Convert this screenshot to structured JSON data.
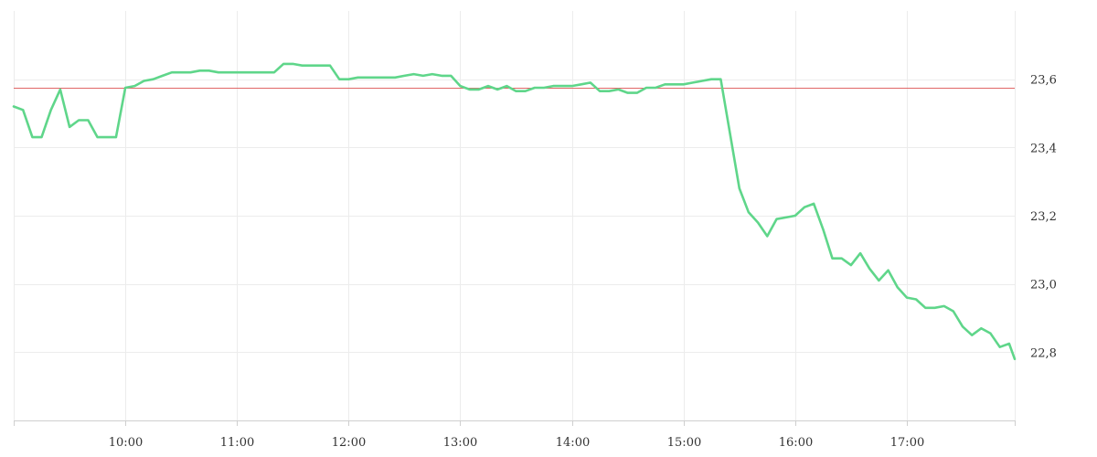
{
  "chart_data": {
    "type": "line",
    "title": "",
    "xlabel": "",
    "ylabel": "",
    "x_ticks": [
      "10:00",
      "11:00",
      "12:00",
      "13:00",
      "14:00",
      "15:00",
      "16:00",
      "17:00"
    ],
    "y_ticks": [
      "22,8",
      "23,0",
      "23,2",
      "23,4",
      "23,6"
    ],
    "y_tick_values": [
      22.8,
      23.0,
      23.2,
      23.4,
      23.6
    ],
    "x_range": [
      "09:00",
      "17:58"
    ],
    "ylim": [
      22.6,
      23.8
    ],
    "grid": true,
    "reference_line": {
      "value": 23.575,
      "color": "#e06666"
    },
    "series": [
      {
        "color": "#5fd68a",
        "points": [
          [
            "09:00",
            23.52
          ],
          [
            "09:05",
            23.51
          ],
          [
            "09:10",
            23.43
          ],
          [
            "09:15",
            23.43
          ],
          [
            "09:20",
            23.51
          ],
          [
            "09:25",
            23.57
          ],
          [
            "09:30",
            23.46
          ],
          [
            "09:35",
            23.48
          ],
          [
            "09:40",
            23.48
          ],
          [
            "09:45",
            23.43
          ],
          [
            "09:50",
            23.43
          ],
          [
            "09:55",
            23.43
          ],
          [
            "10:00",
            23.575
          ],
          [
            "10:05",
            23.58
          ],
          [
            "10:10",
            23.595
          ],
          [
            "10:15",
            23.6
          ],
          [
            "10:20",
            23.61
          ],
          [
            "10:25",
            23.62
          ],
          [
            "10:30",
            23.62
          ],
          [
            "10:35",
            23.62
          ],
          [
            "10:40",
            23.625
          ],
          [
            "10:45",
            23.625
          ],
          [
            "10:50",
            23.62
          ],
          [
            "10:55",
            23.62
          ],
          [
            "11:00",
            23.62
          ],
          [
            "11:05",
            23.62
          ],
          [
            "11:10",
            23.62
          ],
          [
            "11:15",
            23.62
          ],
          [
            "11:20",
            23.62
          ],
          [
            "11:25",
            23.645
          ],
          [
            "11:30",
            23.645
          ],
          [
            "11:35",
            23.64
          ],
          [
            "11:40",
            23.64
          ],
          [
            "11:45",
            23.64
          ],
          [
            "11:50",
            23.64
          ],
          [
            "11:55",
            23.6
          ],
          [
            "12:00",
            23.6
          ],
          [
            "12:05",
            23.605
          ],
          [
            "12:10",
            23.605
          ],
          [
            "12:15",
            23.605
          ],
          [
            "12:20",
            23.605
          ],
          [
            "12:25",
            23.605
          ],
          [
            "12:30",
            23.61
          ],
          [
            "12:35",
            23.615
          ],
          [
            "12:40",
            23.61
          ],
          [
            "12:45",
            23.615
          ],
          [
            "12:50",
            23.61
          ],
          [
            "12:55",
            23.61
          ],
          [
            "13:00",
            23.58
          ],
          [
            "13:05",
            23.57
          ],
          [
            "13:10",
            23.57
          ],
          [
            "13:15",
            23.58
          ],
          [
            "13:20",
            23.57
          ],
          [
            "13:25",
            23.58
          ],
          [
            "13:30",
            23.565
          ],
          [
            "13:35",
            23.565
          ],
          [
            "13:40",
            23.575
          ],
          [
            "13:45",
            23.575
          ],
          [
            "13:50",
            23.58
          ],
          [
            "13:55",
            23.58
          ],
          [
            "14:00",
            23.58
          ],
          [
            "14:05",
            23.585
          ],
          [
            "14:10",
            23.59
          ],
          [
            "14:15",
            23.565
          ],
          [
            "14:20",
            23.565
          ],
          [
            "14:25",
            23.57
          ],
          [
            "14:30",
            23.56
          ],
          [
            "14:35",
            23.56
          ],
          [
            "14:40",
            23.575
          ],
          [
            "14:45",
            23.575
          ],
          [
            "14:50",
            23.585
          ],
          [
            "14:55",
            23.585
          ],
          [
            "15:00",
            23.585
          ],
          [
            "15:05",
            23.59
          ],
          [
            "15:10",
            23.595
          ],
          [
            "15:15",
            23.6
          ],
          [
            "15:20",
            23.6
          ],
          [
            "15:25",
            23.44
          ],
          [
            "15:30",
            23.28
          ],
          [
            "15:35",
            23.21
          ],
          [
            "15:40",
            23.18
          ],
          [
            "15:45",
            23.14
          ],
          [
            "15:50",
            23.19
          ],
          [
            "15:55",
            23.195
          ],
          [
            "16:00",
            23.2
          ],
          [
            "16:05",
            23.225
          ],
          [
            "16:10",
            23.235
          ],
          [
            "16:15",
            23.16
          ],
          [
            "16:20",
            23.075
          ],
          [
            "16:25",
            23.075
          ],
          [
            "16:30",
            23.055
          ],
          [
            "16:35",
            23.09
          ],
          [
            "16:40",
            23.045
          ],
          [
            "16:45",
            23.01
          ],
          [
            "16:50",
            23.04
          ],
          [
            "16:55",
            22.99
          ],
          [
            "17:00",
            22.96
          ],
          [
            "17:05",
            22.955
          ],
          [
            "17:10",
            22.93
          ],
          [
            "17:15",
            22.93
          ],
          [
            "17:20",
            22.935
          ],
          [
            "17:25",
            22.92
          ],
          [
            "17:30",
            22.875
          ],
          [
            "17:35",
            22.85
          ],
          [
            "17:40",
            22.87
          ],
          [
            "17:45",
            22.855
          ],
          [
            "17:50",
            22.815
          ],
          [
            "17:55",
            22.825
          ],
          [
            "17:58",
            22.78
          ]
        ]
      }
    ]
  }
}
